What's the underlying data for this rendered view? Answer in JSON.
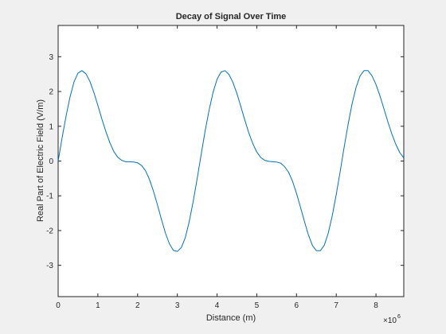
{
  "chart_data": {
    "type": "line",
    "title": "Decay of Signal Over Time",
    "xlabel": "Distance (m)",
    "ylabel": "Real Part of Electric Field (V/m)",
    "x_exponent_label": "×10",
    "x_exponent_power": "6",
    "xlim": [
      0,
      8.7
    ],
    "ylim": [
      -3.9,
      3.9
    ],
    "xticks": [
      0,
      1,
      2,
      3,
      4,
      5,
      6,
      7,
      8
    ],
    "xtick_labels": [
      "0",
      "1",
      "2",
      "3",
      "4",
      "5",
      "6",
      "7",
      "8"
    ],
    "yticks": [
      -3,
      -2,
      -1,
      0,
      1,
      2,
      3
    ],
    "ytick_labels": [
      "-3",
      "-2",
      "-1",
      "0",
      "1",
      "2",
      "3"
    ],
    "grid": false,
    "series": [
      {
        "name": "signal",
        "color": "#0072bd",
        "x": [
          0,
          0.1,
          0.2,
          0.3,
          0.4,
          0.5,
          0.6,
          0.7,
          0.8,
          0.9,
          1.0,
          1.1,
          1.2,
          1.3,
          1.4,
          1.5,
          1.6,
          1.7,
          1.8,
          1.9,
          2.0,
          2.1,
          2.2,
          2.3,
          2.4,
          2.5,
          2.6,
          2.7,
          2.8,
          2.9,
          3.0,
          3.1,
          3.2,
          3.3,
          3.4,
          3.5,
          3.6,
          3.7,
          3.8,
          3.9,
          4.0,
          4.1,
          4.2,
          4.3,
          4.4,
          4.5,
          4.6,
          4.7,
          4.8,
          4.9,
          5.0,
          5.1,
          5.2,
          5.3,
          5.4,
          5.5,
          5.6,
          5.7,
          5.8,
          5.9,
          6.0,
          6.1,
          6.2,
          6.3,
          6.4,
          6.5,
          6.6,
          6.7,
          6.8,
          6.9,
          7.0,
          7.1,
          7.2,
          7.3,
          7.4,
          7.5,
          7.6,
          7.7,
          7.8,
          7.9,
          8.0,
          8.1,
          8.2,
          8.3,
          8.4,
          8.5,
          8.6,
          8.7
        ],
        "y": [
          0,
          0.67,
          1.3,
          1.85,
          2.28,
          2.53,
          2.6,
          2.51,
          2.29,
          1.97,
          1.6,
          1.21,
          0.85,
          0.53,
          0.28,
          0.11,
          0.02,
          -0.02,
          -0.02,
          -0.03,
          -0.05,
          -0.13,
          -0.28,
          -0.53,
          -0.87,
          -1.26,
          -1.68,
          -2.07,
          -2.38,
          -2.57,
          -2.6,
          -2.49,
          -2.21,
          -1.74,
          -1.16,
          -0.5,
          0.19,
          0.87,
          1.47,
          1.98,
          2.35,
          2.56,
          2.6,
          2.49,
          2.26,
          1.94,
          1.56,
          1.17,
          0.81,
          0.5,
          0.26,
          0.1,
          0.02,
          -0.01,
          -0.02,
          -0.03,
          -0.06,
          -0.16,
          -0.32,
          -0.58,
          -0.93,
          -1.33,
          -1.74,
          -2.13,
          -2.43,
          -2.58,
          -2.58,
          -2.42,
          -2.07,
          -1.57,
          -0.96,
          -0.29,
          0.41,
          1.07,
          1.65,
          2.12,
          2.45,
          2.6,
          2.6,
          2.45,
          2.2,
          1.87,
          1.5,
          1.13,
          0.78,
          0.48,
          0.24,
          0.09
        ]
      }
    ]
  }
}
